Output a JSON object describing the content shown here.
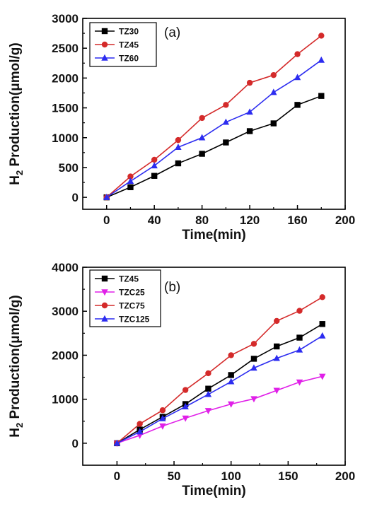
{
  "chart_data": [
    {
      "type": "line",
      "panel_label": "(a)",
      "xlabel": "Time(min)",
      "ylabel": "H2 Production(μmol/g)",
      "ylabel_parts": {
        "main": "H",
        "sub": "2",
        "rest": " Production(μmol/g)"
      },
      "xlim": [
        -20,
        200
      ],
      "ylim": [
        -200,
        3000
      ],
      "xticks": [
        "0",
        "40",
        "80",
        "120",
        "160",
        "200"
      ],
      "xtick_values": [
        0,
        40,
        80,
        120,
        160,
        200
      ],
      "yticks": [
        "0",
        "500",
        "1000",
        "1500",
        "2000",
        "2500",
        "3000"
      ],
      "ytick_values": [
        0,
        500,
        1000,
        1500,
        2000,
        2500,
        3000
      ],
      "x": [
        0,
        20,
        40,
        60,
        80,
        100,
        120,
        140,
        160,
        180
      ],
      "legend_position": "top-left",
      "series": [
        {
          "name": "TZ30",
          "color": "#000000",
          "marker": "square",
          "values": [
            0,
            170,
            360,
            570,
            730,
            920,
            1110,
            1240,
            1550,
            1700
          ]
        },
        {
          "name": "TZ45",
          "color": "#d42a2a",
          "marker": "circle",
          "values": [
            0,
            350,
            630,
            960,
            1330,
            1550,
            1920,
            2050,
            2400,
            2710
          ]
        },
        {
          "name": "TZ60",
          "color": "#2c2cf0",
          "marker": "triangle-up",
          "values": [
            0,
            270,
            530,
            840,
            1000,
            1260,
            1430,
            1760,
            2010,
            2300
          ]
        }
      ]
    },
    {
      "type": "line",
      "panel_label": "(b)",
      "xlabel": "Time(min)",
      "ylabel": "H2 Production(μmol/g)",
      "ylabel_parts": {
        "main": "H",
        "sub": "2",
        "rest": " Production(μmol/g)"
      },
      "xlim": [
        -30,
        200
      ],
      "ylim": [
        -500,
        4000
      ],
      "xticks": [
        "0",
        "50",
        "100",
        "150",
        "200"
      ],
      "xtick_values": [
        0,
        50,
        100,
        150,
        200
      ],
      "yticks": [
        "0",
        "1000",
        "2000",
        "3000",
        "4000"
      ],
      "ytick_values": [
        0,
        1000,
        2000,
        3000,
        4000
      ],
      "x": [
        0,
        20,
        40,
        60,
        80,
        100,
        120,
        140,
        160,
        180
      ],
      "legend_position": "top-left",
      "series": [
        {
          "name": "TZ45",
          "color": "#000000",
          "marker": "square",
          "values": [
            0,
            310,
            600,
            890,
            1240,
            1550,
            1920,
            2200,
            2400,
            2710
          ]
        },
        {
          "name": "TZC25",
          "color": "#e020e8",
          "marker": "triangle-down",
          "values": [
            0,
            180,
            390,
            570,
            740,
            890,
            1010,
            1200,
            1390,
            1520
          ]
        },
        {
          "name": "TZC75",
          "color": "#d42a2a",
          "marker": "circle",
          "values": [
            0,
            440,
            750,
            1210,
            1590,
            2000,
            2260,
            2780,
            3010,
            3320
          ]
        },
        {
          "name": "TZC125",
          "color": "#2c2cf0",
          "marker": "triangle-up",
          "values": [
            0,
            260,
            560,
            830,
            1110,
            1400,
            1710,
            1930,
            2120,
            2440
          ]
        }
      ]
    }
  ]
}
